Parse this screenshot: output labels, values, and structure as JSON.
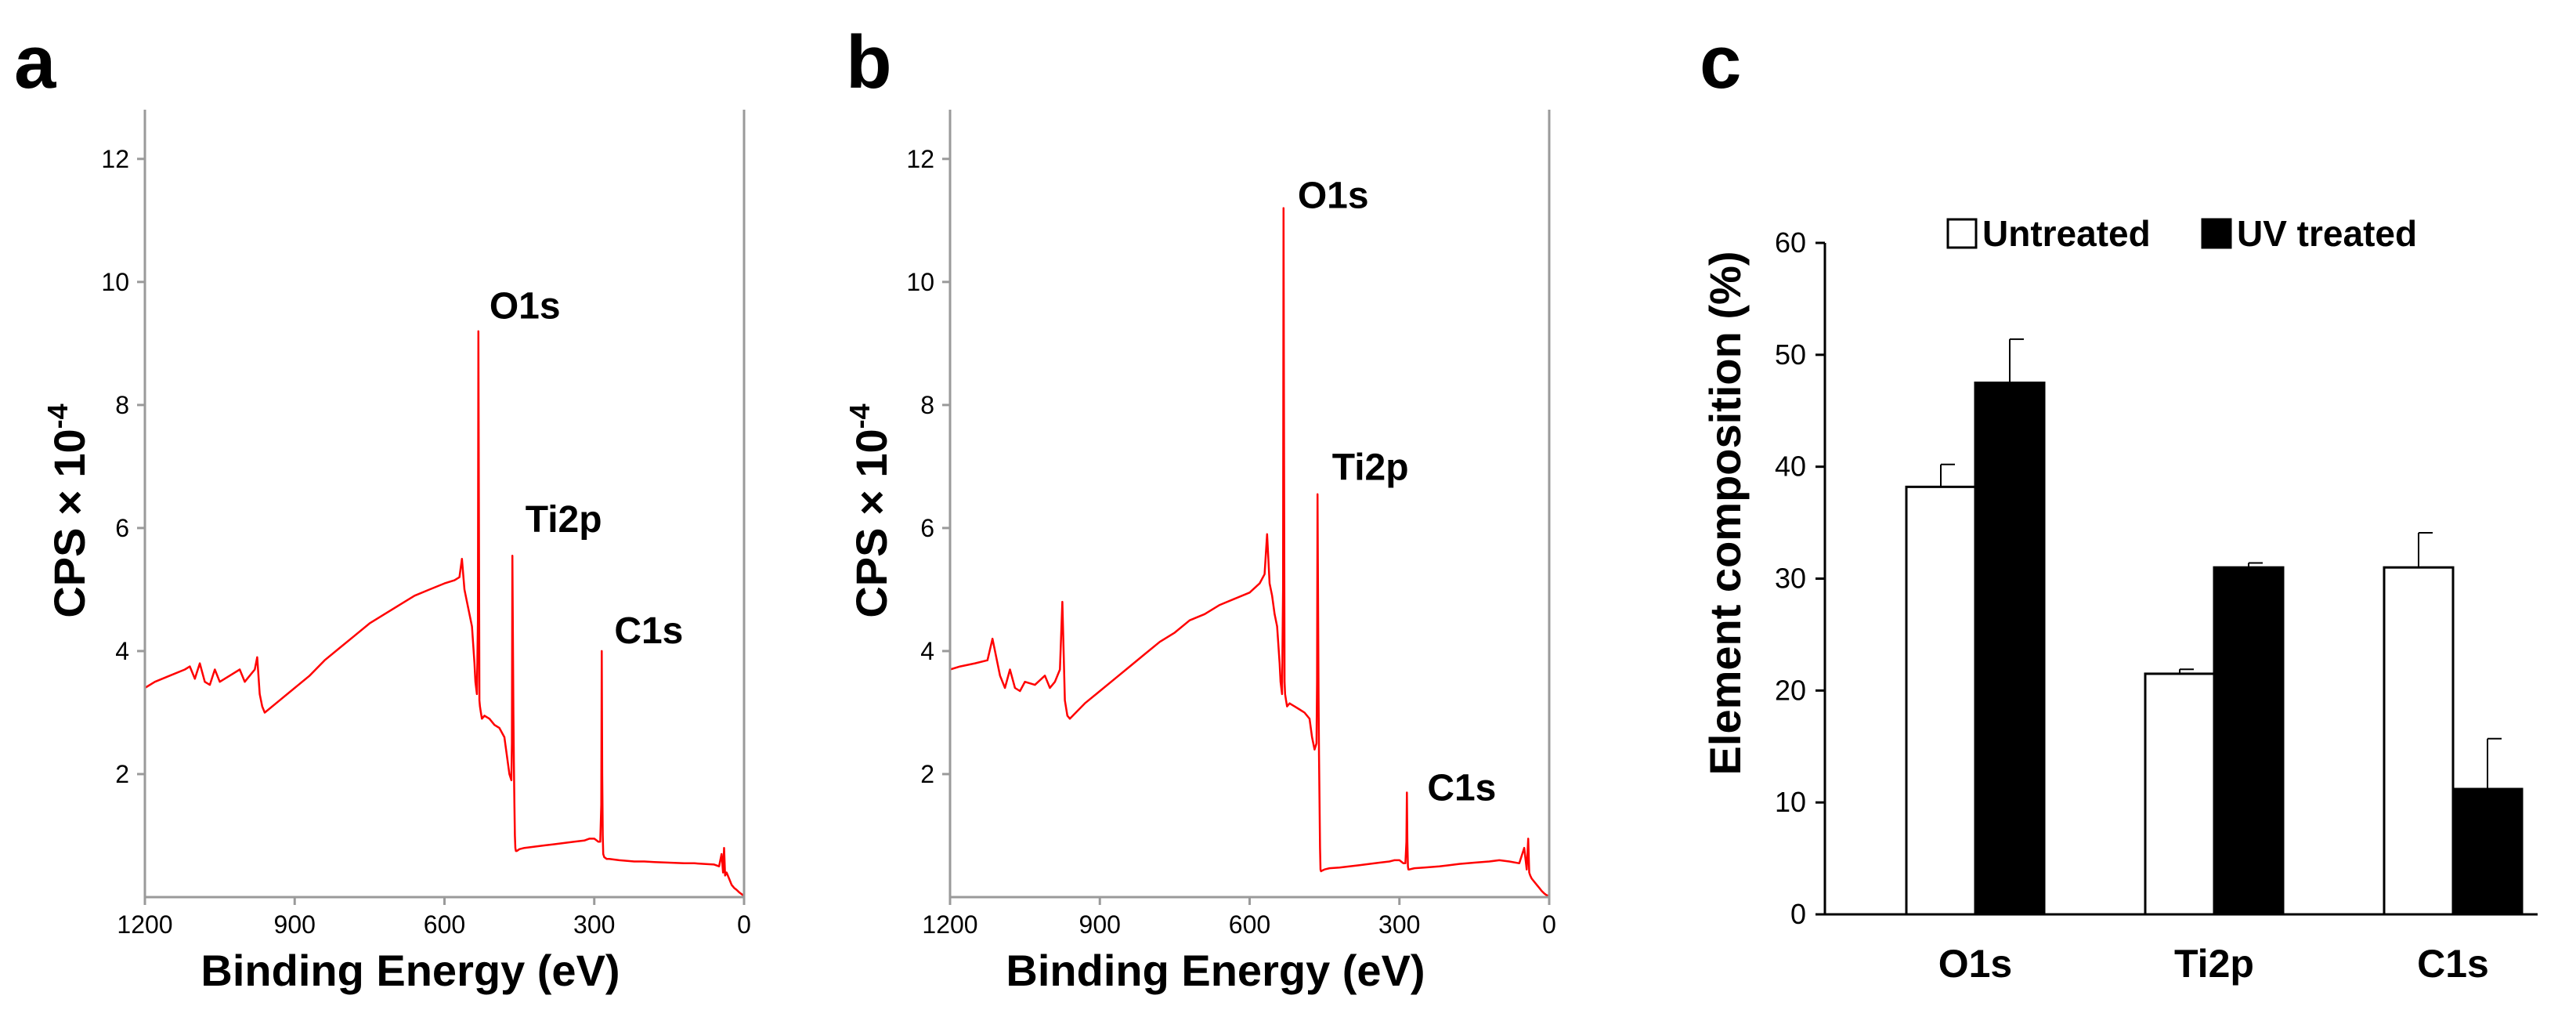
{
  "panels": {
    "a": {
      "letter": "a"
    },
    "b": {
      "letter": "b"
    },
    "c": {
      "letter": "c"
    }
  },
  "chart_data": [
    {
      "id": "a",
      "type": "line",
      "title": "",
      "xlabel": "Binding Energy (eV)",
      "ylabel_main": "CPS × 10",
      "ylabel_exp": "-4",
      "xlim": [
        1200,
        0
      ],
      "ylim": [
        0,
        12.8
      ],
      "x_ticks": [
        1200,
        900,
        600,
        300,
        0
      ],
      "y_ticks": [
        2,
        4,
        6,
        8,
        10,
        12
      ],
      "color": "#ff0000",
      "x": [
        1200,
        1180,
        1150,
        1120,
        1110,
        1100,
        1090,
        1080,
        1070,
        1060,
        1050,
        1030,
        1010,
        1000,
        990,
        980,
        975,
        970,
        965,
        960,
        930,
        900,
        870,
        840,
        810,
        780,
        750,
        720,
        690,
        660,
        630,
        600,
        580,
        570,
        565,
        560,
        555,
        550,
        545,
        540,
        538,
        535,
        533,
        532,
        531,
        530,
        529,
        527,
        525,
        520,
        510,
        500,
        490,
        480,
        475,
        470,
        466,
        465,
        464,
        462,
        461,
        460,
        459,
        458,
        457,
        455,
        450,
        440,
        420,
        400,
        380,
        360,
        340,
        320,
        310,
        300,
        292,
        288,
        286,
        285,
        284,
        283,
        282,
        280,
        275,
        270,
        250,
        220,
        200,
        180,
        150,
        120,
        100,
        80,
        60,
        50,
        45,
        42,
        40,
        38,
        35,
        30,
        25,
        20,
        15,
        10,
        5,
        0
      ],
      "values": [
        3.4,
        3.5,
        3.6,
        3.7,
        3.75,
        3.55,
        3.8,
        3.5,
        3.45,
        3.7,
        3.5,
        3.6,
        3.7,
        3.5,
        3.6,
        3.7,
        3.9,
        3.3,
        3.1,
        3.0,
        3.2,
        3.4,
        3.6,
        3.85,
        4.05,
        4.25,
        4.45,
        4.6,
        4.75,
        4.9,
        5.0,
        5.1,
        5.15,
        5.2,
        5.5,
        5.0,
        4.8,
        4.6,
        4.4,
        3.8,
        3.5,
        3.3,
        4.5,
        9.2,
        6.0,
        3.2,
        3.1,
        3.0,
        2.9,
        2.95,
        2.9,
        2.8,
        2.75,
        2.6,
        2.3,
        2.0,
        1.9,
        2.5,
        5.55,
        3.0,
        2.2,
        1.5,
        1.0,
        0.8,
        0.75,
        0.75,
        0.78,
        0.8,
        0.82,
        0.84,
        0.86,
        0.88,
        0.9,
        0.92,
        0.95,
        0.95,
        0.9,
        0.9,
        1.5,
        4.0,
        2.0,
        1.0,
        0.7,
        0.65,
        0.62,
        0.62,
        0.6,
        0.58,
        0.58,
        0.57,
        0.56,
        0.55,
        0.55,
        0.54,
        0.53,
        0.5,
        0.7,
        0.4,
        0.8,
        0.35,
        0.4,
        0.3,
        0.2,
        0.15,
        0.12,
        0.08,
        0.05,
        0.02
      ],
      "annotations": [
        {
          "label": "O1s",
          "x": 532,
          "y": 9.2
        },
        {
          "label": "Ti2p",
          "x": 460,
          "y": 5.55
        },
        {
          "label": "C1s",
          "x": 285,
          "y": 4.0
        }
      ]
    },
    {
      "id": "b",
      "type": "line",
      "title": "",
      "xlabel": "Binding Energy (eV)",
      "ylabel_main": "CPS × 10",
      "ylabel_exp": "-4",
      "xlim": [
        1200,
        0
      ],
      "ylim": [
        0,
        12.8
      ],
      "x_ticks": [
        1200,
        900,
        600,
        300,
        0
      ],
      "y_ticks": [
        2,
        4,
        6,
        8,
        10,
        12
      ],
      "color": "#ff0000",
      "x": [
        1200,
        1180,
        1150,
        1125,
        1115,
        1110,
        1100,
        1090,
        1080,
        1070,
        1060,
        1050,
        1030,
        1010,
        1000,
        990,
        980,
        975,
        970,
        965,
        960,
        930,
        900,
        870,
        840,
        810,
        780,
        750,
        720,
        690,
        660,
        630,
        600,
        580,
        570,
        565,
        560,
        555,
        550,
        545,
        540,
        538,
        535,
        533,
        532,
        531,
        530,
        529,
        527,
        525,
        520,
        510,
        500,
        490,
        480,
        475,
        470,
        466,
        465,
        464,
        462,
        461,
        460,
        459,
        458,
        457,
        455,
        450,
        440,
        420,
        400,
        380,
        360,
        340,
        320,
        310,
        300,
        292,
        288,
        286,
        285,
        284,
        283,
        282,
        280,
        275,
        270,
        250,
        220,
        200,
        180,
        150,
        120,
        100,
        80,
        60,
        50,
        45,
        42,
        40,
        38,
        35,
        30,
        25,
        20,
        15,
        10,
        5,
        0
      ],
      "values": [
        3.7,
        3.75,
        3.8,
        3.85,
        4.2,
        4.0,
        3.6,
        3.4,
        3.7,
        3.4,
        3.35,
        3.5,
        3.45,
        3.6,
        3.4,
        3.5,
        3.7,
        4.8,
        3.2,
        2.95,
        2.9,
        3.15,
        3.35,
        3.55,
        3.75,
        3.95,
        4.15,
        4.3,
        4.5,
        4.6,
        4.75,
        4.85,
        4.95,
        5.1,
        5.25,
        5.9,
        5.1,
        4.9,
        4.6,
        4.4,
        3.8,
        3.5,
        3.3,
        5.0,
        11.2,
        7.0,
        3.5,
        3.3,
        3.2,
        3.1,
        3.15,
        3.1,
        3.05,
        3.0,
        2.9,
        2.6,
        2.4,
        2.5,
        3.5,
        6.55,
        3.3,
        2.3,
        1.5,
        0.8,
        0.45,
        0.42,
        0.43,
        0.45,
        0.47,
        0.48,
        0.5,
        0.52,
        0.54,
        0.56,
        0.58,
        0.6,
        0.6,
        0.55,
        0.55,
        0.9,
        1.7,
        0.9,
        0.5,
        0.45,
        0.45,
        0.46,
        0.47,
        0.48,
        0.5,
        0.52,
        0.54,
        0.56,
        0.58,
        0.6,
        0.58,
        0.55,
        0.8,
        0.45,
        0.95,
        0.4,
        0.35,
        0.3,
        0.25,
        0.2,
        0.15,
        0.1,
        0.06,
        0.03,
        0.02
      ],
      "annotations": [
        {
          "label": "O1s",
          "x": 532,
          "y": 11.2
        },
        {
          "label": "Ti2p",
          "x": 460,
          "y": 6.55
        },
        {
          "label": "C1s",
          "x": 285,
          "y": 1.7
        }
      ]
    },
    {
      "id": "c",
      "type": "bar",
      "title": "",
      "xlabel": "",
      "ylabel": "Element composition (%)",
      "ylim": [
        0,
        60
      ],
      "y_ticks": [
        0,
        10,
        20,
        30,
        40,
        50,
        60
      ],
      "categories": [
        "O1s",
        "Ti2p",
        "C1s"
      ],
      "series": [
        {
          "name": "Untreated",
          "color": "#ffffff",
          "values": [
            38.2,
            21.5,
            31.0
          ],
          "errors": [
            2.0,
            0.4,
            3.1
          ]
        },
        {
          "name": "UV treated",
          "color": "#000000",
          "values": [
            47.5,
            31.0,
            11.2
          ],
          "errors": [
            3.9,
            0.4,
            4.5
          ]
        }
      ],
      "legend": "top"
    }
  ]
}
